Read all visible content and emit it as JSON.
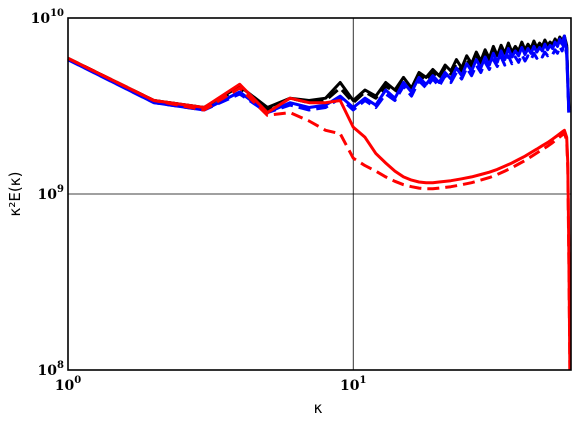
{
  "chart_data": {
    "type": "line",
    "xlabel": "κ",
    "ylabel": "κ²E(κ)",
    "x_scale": "log",
    "y_scale": "log",
    "xlim": [
      1,
      58
    ],
    "ylim": [
      100000000,
      10000000000
    ],
    "x_ticks": [
      {
        "base": "10",
        "exp": "0",
        "value": 1
      },
      {
        "base": "10",
        "exp": "1",
        "value": 10
      }
    ],
    "y_ticks": [
      {
        "base": "10",
        "exp": "8",
        "value": 100000000
      },
      {
        "base": "10",
        "exp": "9",
        "value": 1000000000
      },
      {
        "base": "10",
        "exp": "10",
        "value": 10000000000
      }
    ],
    "grid": true,
    "series": [
      {
        "color": "#000000",
        "dash": "solid",
        "x": [
          1,
          2,
          3,
          4,
          5,
          6,
          7,
          8,
          9,
          10,
          11,
          12,
          13,
          14,
          15,
          16,
          17,
          18,
          19,
          20,
          21,
          22,
          23,
          24,
          25,
          26,
          27,
          28,
          29,
          30,
          31,
          32,
          33,
          34,
          35,
          36,
          37,
          38,
          39,
          40,
          41,
          42,
          43,
          44,
          45,
          46,
          47,
          48,
          49,
          50,
          51,
          52,
          53,
          54,
          55,
          56,
          57
        ],
        "y": [
          5900000000.0,
          3400000000.0,
          3100000000.0,
          4100000000.0,
          3100000000.0,
          3500000000.0,
          3400000000.0,
          3500000000.0,
          4300000000.0,
          3400000000.0,
          3900000000.0,
          3600000000.0,
          4300000000.0,
          3900000000.0,
          4600000000.0,
          4000000000.0,
          4900000000.0,
          4600000000.0,
          5100000000.0,
          4700000000.0,
          5400000000.0,
          5000000000.0,
          5800000000.0,
          5200000000.0,
          6100000000.0,
          5500000000.0,
          6400000000.0,
          5700000000.0,
          6600000000.0,
          5900000000.0,
          6900000000.0,
          6100000000.0,
          7000000000.0,
          6300000000.0,
          7200000000.0,
          6400000000.0,
          6900000000.0,
          6500000000.0,
          7300000000.0,
          6600000000.0,
          7100000000.0,
          6700000000.0,
          7400000000.0,
          6800000000.0,
          7200000000.0,
          6900000000.0,
          7500000000.0,
          7000000000.0,
          7300000000.0,
          7100000000.0,
          7600000000.0,
          7200000000.0,
          7800000000.0,
          7400000000.0,
          7900000000.0,
          7000000000.0,
          3000000000.0
        ]
      },
      {
        "color": "#000000",
        "dash": "dashed",
        "x": [
          1,
          2,
          3,
          4,
          5,
          6,
          7,
          8,
          9,
          10,
          11,
          12,
          13,
          14,
          15,
          16,
          17,
          18,
          19,
          20,
          21,
          22,
          23,
          24,
          25,
          26,
          27,
          28,
          29,
          30,
          31,
          32,
          33,
          34,
          35,
          36,
          37,
          38,
          39,
          40,
          41,
          42,
          43,
          44,
          45,
          46,
          47,
          48,
          49,
          50,
          51,
          52,
          53,
          54,
          55,
          56,
          57
        ],
        "y": [
          5900000000.0,
          3400000000.0,
          3100000000.0,
          4000000000.0,
          3000000000.0,
          3500000000.0,
          3300000000.0,
          3400000000.0,
          4000000000.0,
          3300000000.0,
          3800000000.0,
          3500000000.0,
          4100000000.0,
          3800000000.0,
          4400000000.0,
          3900000000.0,
          4700000000.0,
          4400000000.0,
          4900000000.0,
          4500000000.0,
          5200000000.0,
          4800000000.0,
          5500000000.0,
          5000000000.0,
          5800000000.0,
          5300000000.0,
          6100000000.0,
          5500000000.0,
          6300000000.0,
          5700000000.0,
          6500000000.0,
          5900000000.0,
          6700000000.0,
          6100000000.0,
          6900000000.0,
          6200000000.0,
          6700000000.0,
          6300000000.0,
          7000000000.0,
          6400000000.0,
          6900000000.0,
          6500000000.0,
          7100000000.0,
          6600000000.0,
          7000000000.0,
          6700000000.0,
          7200000000.0,
          6800000000.0,
          7100000000.0,
          6900000000.0,
          7300000000.0,
          7000000000.0,
          7500000000.0,
          7100000000.0,
          7600000000.0,
          6800000000.0,
          3000000000.0
        ]
      },
      {
        "color": "#0000ff",
        "dash": "solid",
        "x": [
          1,
          2,
          3,
          4,
          5,
          6,
          7,
          8,
          9,
          10,
          11,
          12,
          13,
          14,
          15,
          16,
          17,
          18,
          19,
          20,
          21,
          22,
          23,
          24,
          25,
          26,
          27,
          28,
          29,
          30,
          31,
          32,
          33,
          34,
          35,
          36,
          37,
          38,
          39,
          40,
          41,
          42,
          43,
          44,
          45,
          46,
          47,
          48,
          49,
          50,
          51,
          52,
          53,
          54,
          55,
          56,
          57
        ],
        "y": [
          5800000000.0,
          3300000000.0,
          3000000000.0,
          3800000000.0,
          2900000000.0,
          3300000000.0,
          3100000000.0,
          3200000000.0,
          3600000000.0,
          3100000000.0,
          3500000000.0,
          3200000000.0,
          3900000000.0,
          3500000000.0,
          4300000000.0,
          3800000000.0,
          4600000000.0,
          4200000000.0,
          4700000000.0,
          4300000000.0,
          4900000000.0,
          4500000000.0,
          5200000000.0,
          4700000000.0,
          5500000000.0,
          5000000000.0,
          5800000000.0,
          5200000000.0,
          6000000000.0,
          5400000000.0,
          6300000000.0,
          5600000000.0,
          6500000000.0,
          5800000000.0,
          6700000000.0,
          6000000000.0,
          6500000000.0,
          6100000000.0,
          6800000000.0,
          6200000000.0,
          6700000000.0,
          6300000000.0,
          6900000000.0,
          6400000000.0,
          6800000000.0,
          6500000000.0,
          7100000000.0,
          6600000000.0,
          7000000000.0,
          6700000000.0,
          7300000000.0,
          6900000000.0,
          7600000000.0,
          7100000000.0,
          7900000000.0,
          6600000000.0,
          2900000000.0
        ]
      },
      {
        "color": "#0000ff",
        "dash": "dashed",
        "x": [
          1,
          2,
          3,
          4,
          5,
          6,
          7,
          8,
          9,
          10,
          11,
          12,
          13,
          14,
          15,
          16,
          17,
          18,
          19,
          20,
          21,
          22,
          23,
          24,
          25,
          26,
          27,
          28,
          29,
          30,
          31,
          32,
          33,
          34,
          35,
          36,
          37,
          38,
          39,
          40,
          41,
          42,
          43,
          44,
          45,
          46,
          47,
          48,
          49,
          50,
          51,
          52,
          53,
          54,
          55,
          56,
          57
        ],
        "y": [
          5800000000.0,
          3300000000.0,
          3000000000.0,
          3700000000.0,
          2900000000.0,
          3200000000.0,
          3000000000.0,
          3100000000.0,
          3500000000.0,
          3000000000.0,
          3400000000.0,
          3100000000.0,
          3700000000.0,
          3400000000.0,
          4100000000.0,
          3600000000.0,
          4400000000.0,
          4000000000.0,
          4500000000.0,
          4100000000.0,
          4700000000.0,
          4300000000.0,
          4900000000.0,
          4500000000.0,
          5200000000.0,
          4700000000.0,
          5400000000.0,
          4900000000.0,
          5600000000.0,
          5100000000.0,
          5800000000.0,
          5300000000.0,
          6000000000.0,
          5400000000.0,
          6100000000.0,
          5500000000.0,
          6000000000.0,
          5600000000.0,
          6200000000.0,
          5700000000.0,
          6100000000.0,
          5800000000.0,
          6300000000.0,
          5900000000.0,
          6200000000.0,
          6000000000.0,
          6400000000.0,
          6100000000.0,
          6300000000.0,
          6200000000.0,
          6600000000.0,
          6300000000.0,
          6900000000.0,
          6500000000.0,
          7200000000.0,
          6200000000.0,
          2900000000.0
        ]
      },
      {
        "color": "#ff0000",
        "dash": "solid",
        "x": [
          1,
          2,
          3,
          4,
          5,
          6,
          7,
          8,
          9,
          10,
          11,
          12,
          13,
          14,
          15,
          16,
          17,
          18,
          19,
          20,
          22,
          24,
          26,
          28,
          30,
          32,
          34,
          36,
          38,
          40,
          42,
          44,
          46,
          48,
          50,
          52,
          54,
          55,
          56,
          56.5,
          57,
          57.5
        ],
        "y": [
          5900000000.0,
          3400000000.0,
          3100000000.0,
          4200000000.0,
          2900000000.0,
          3500000000.0,
          3300000000.0,
          3300000000.0,
          3400000000.0,
          2400000000.0,
          2100000000.0,
          1700000000.0,
          1500000000.0,
          1350000000.0,
          1250000000.0,
          1200000000.0,
          1170000000.0,
          1160000000.0,
          1160000000.0,
          1170000000.0,
          1190000000.0,
          1220000000.0,
          1250000000.0,
          1290000000.0,
          1330000000.0,
          1380000000.0,
          1440000000.0,
          1500000000.0,
          1570000000.0,
          1640000000.0,
          1720000000.0,
          1800000000.0,
          1880000000.0,
          1960000000.0,
          2050000000.0,
          2150000000.0,
          2250000000.0,
          2300000000.0,
          2100000000.0,
          1500000000.0,
          500000000.0,
          100000000.0
        ]
      },
      {
        "color": "#ff0000",
        "dash": "dashed",
        "x": [
          1,
          2,
          3,
          4,
          5,
          6,
          7,
          8,
          9,
          10,
          11,
          12,
          13,
          14,
          15,
          16,
          17,
          18,
          19,
          20,
          22,
          24,
          26,
          28,
          30,
          32,
          34,
          36,
          38,
          40,
          42,
          44,
          46,
          48,
          50,
          52,
          54,
          55,
          56,
          56.5,
          57,
          57.5
        ],
        "y": [
          5900000000.0,
          3400000000.0,
          3000000000.0,
          4000000000.0,
          2800000000.0,
          2900000000.0,
          2600000000.0,
          2300000000.0,
          2200000000.0,
          1600000000.0,
          1450000000.0,
          1350000000.0,
          1250000000.0,
          1180000000.0,
          1130000000.0,
          1100000000.0,
          1080000000.0,
          1070000000.0,
          1070000000.0,
          1080000000.0,
          1100000000.0,
          1130000000.0,
          1160000000.0,
          1200000000.0,
          1240000000.0,
          1290000000.0,
          1350000000.0,
          1410000000.0,
          1480000000.0,
          1550000000.0,
          1630000000.0,
          1710000000.0,
          1790000000.0,
          1870000000.0,
          1960000000.0,
          2060000000.0,
          2160000000.0,
          2210000000.0,
          2020000000.0,
          1400000000.0,
          450000000.0,
          100000000.0
        ]
      }
    ]
  }
}
